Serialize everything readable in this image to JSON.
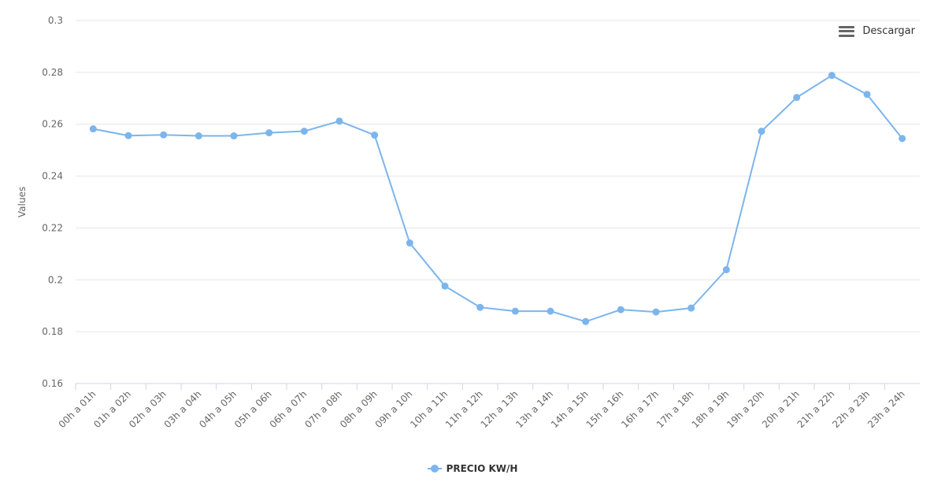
{
  "menu": {
    "label": "Descargar",
    "icon": "hamburger-menu-icon"
  },
  "chart_data": {
    "type": "line",
    "title": "",
    "xlabel": "",
    "ylabel": "Values",
    "ylim": [
      0.16,
      0.3
    ],
    "yticks": [
      "0.16",
      "0.18",
      "0.2",
      "0.22",
      "0.24",
      "0.26",
      "0.28",
      "0.3"
    ],
    "grid": true,
    "legend": "bottom-center",
    "color": "#7cb5ec",
    "categories": [
      "00h a 01h",
      "01h a 02h",
      "02h a 03h",
      "03h a 04h",
      "04h a 05h",
      "05h a 06h",
      "06h a 07h",
      "07h a 08h",
      "08h a 09h",
      "09h a 10h",
      "10h a 11h",
      "11h a 12h",
      "12h a 13h",
      "13h a 14h",
      "14h a 15h",
      "15h a 16h",
      "16h a 17h",
      "17h a 18h",
      "18h a 19h",
      "19h a 20h",
      "20h a 21h",
      "21h a 22h",
      "22h a 23h",
      "23h a 24h"
    ],
    "series": [
      {
        "name": "PRECIO KW/H",
        "values": [
          0.2582,
          0.2556,
          0.2559,
          0.2555,
          0.2555,
          0.2567,
          0.2573,
          0.2612,
          0.2558,
          0.2142,
          0.1976,
          0.1894,
          0.1879,
          0.1879,
          0.1839,
          0.1885,
          0.1876,
          0.1891,
          0.2039,
          0.2573,
          0.2703,
          0.2788,
          0.2715,
          0.2545
        ]
      }
    ]
  }
}
